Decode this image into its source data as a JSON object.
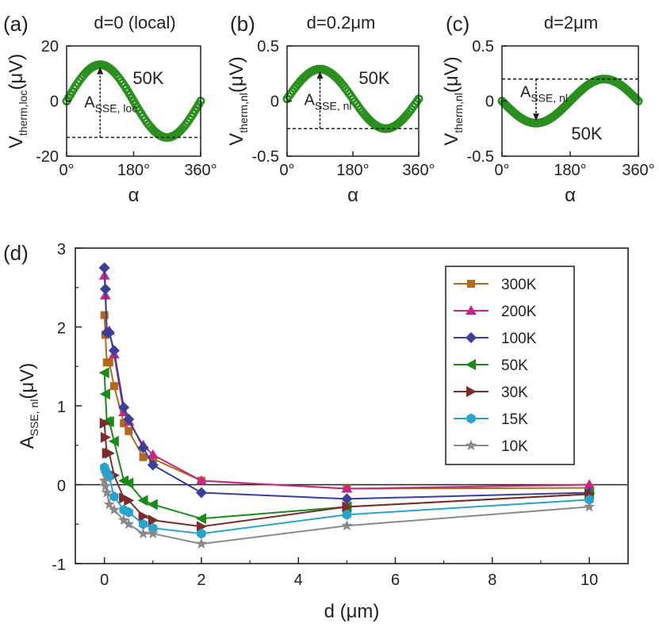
{
  "chart_data": [
    {
      "panel": "a",
      "type": "scatter",
      "title": "d=0 (local)",
      "xlabel": "α",
      "ylabel_main": "V",
      "ylabel_sub": "therm,loc",
      "ylabel_unit": "(μV)",
      "xlim": [
        0,
        360
      ],
      "ylim": [
        -20,
        20
      ],
      "xticks": [
        0,
        180,
        360
      ],
      "xtick_labels": [
        "0°",
        "180°",
        "360°"
      ],
      "yticks": [
        20,
        0,
        -20
      ],
      "ytick_labels": [
        "20",
        "0",
        "-20"
      ],
      "temperature": "50K",
      "annotation_main": "A",
      "annotation_sub": "SSE, loc",
      "amplitude": 13.2,
      "offset": 0,
      "phase_deg": 0,
      "ref_line": -13.2,
      "color": "#2a8f1f"
    },
    {
      "panel": "b",
      "type": "scatter",
      "title": "d=0.2μm",
      "xlabel": "α",
      "ylabel_main": "V",
      "ylabel_sub": "therm,nl",
      "ylabel_unit": "(μV)",
      "xlim": [
        0,
        360
      ],
      "ylim": [
        -0.5,
        0.5
      ],
      "xticks": [
        0,
        180,
        360
      ],
      "xtick_labels": [
        "0°",
        "180°",
        "360°"
      ],
      "yticks": [
        0.5,
        0,
        -0.5
      ],
      "ytick_labels": [
        "0.5",
        "0",
        "-0.5"
      ],
      "temperature": "50K",
      "annotation_main": "A",
      "annotation_sub": "SSE, nl",
      "amplitude": 0.27,
      "offset": 0.02,
      "phase_deg": 0,
      "ref_line": -0.25,
      "color": "#2a8f1f"
    },
    {
      "panel": "c",
      "type": "scatter",
      "title": "d=2μm",
      "xlabel": "α",
      "ylabel_main": "V",
      "ylabel_sub": "therm,nl",
      "ylabel_unit": "(μV)",
      "xlim": [
        0,
        360
      ],
      "ylim": [
        -0.5,
        0.5
      ],
      "xticks": [
        0,
        180,
        360
      ],
      "xtick_labels": [
        "0°",
        "180°",
        "360°"
      ],
      "yticks": [
        0.5,
        0,
        -0.5
      ],
      "ytick_labels": [
        "0.5",
        "0",
        "-0.5"
      ],
      "temperature": "50K",
      "annotation_main": "A",
      "annotation_sub": "SSE, nl",
      "amplitude": 0.2,
      "offset": 0,
      "phase_deg": 180,
      "ref_line": 0.2,
      "color": "#2a8f1f"
    },
    {
      "panel": "d",
      "type": "line",
      "xlabel_main": "d",
      "xlabel_unit": "(μm)",
      "ylabel_main": "A",
      "ylabel_sub": "SSE, nl",
      "ylabel_unit": "(μV)",
      "xlim": [
        -0.6,
        10.8
      ],
      "ylim": [
        -1,
        3
      ],
      "xticks": [
        0,
        2,
        4,
        6,
        8,
        10
      ],
      "xtick_labels": [
        "0",
        "2",
        "4",
        "6",
        "8",
        "10"
      ],
      "yticks": [
        3,
        2,
        1,
        0,
        -1
      ],
      "ytick_labels": [
        "3",
        "2",
        "1",
        "0",
        "-1"
      ],
      "legend_position": "top-right",
      "zero_line": true,
      "series": [
        {
          "name": "300K",
          "color": "#b06a1e",
          "marker": "square",
          "x": [
            0,
            0.02,
            0.05,
            0.1,
            0.2,
            0.4,
            0.5,
            0.8,
            1,
            2,
            5,
            10
          ],
          "y": [
            2.15,
            1.9,
            1.55,
            1.55,
            1.25,
            0.78,
            0.68,
            0.35,
            0.33,
            0.05,
            -0.05,
            -0.04
          ]
        },
        {
          "name": "200K",
          "color": "#c22a84",
          "marker": "triangle",
          "x": [
            0,
            0.02,
            0.05,
            0.1,
            0.2,
            0.4,
            0.5,
            0.8,
            1,
            2,
            5,
            10
          ],
          "y": [
            2.65,
            2.4,
            1.95,
            1.95,
            1.65,
            0.92,
            0.8,
            0.5,
            0.38,
            0.05,
            -0.05,
            0.0
          ]
        },
        {
          "name": "100K",
          "color": "#3b3f98",
          "marker": "diamond",
          "x": [
            0,
            0.02,
            0.05,
            0.1,
            0.2,
            0.4,
            0.5,
            0.8,
            1,
            2,
            5,
            10
          ],
          "y": [
            2.75,
            2.48,
            1.93,
            1.93,
            1.7,
            0.98,
            0.83,
            0.47,
            0.25,
            -0.1,
            -0.18,
            -0.1
          ]
        },
        {
          "name": "50K",
          "color": "#1b8a1b",
          "marker": "tri-left",
          "x": [
            0,
            0.02,
            0.05,
            0.1,
            0.2,
            0.4,
            0.5,
            0.8,
            1,
            2,
            5,
            10
          ],
          "y": [
            1.42,
            1.15,
            0.8,
            0.8,
            0.55,
            0.05,
            0.02,
            -0.2,
            -0.25,
            -0.43,
            -0.28,
            -0.12
          ]
        },
        {
          "name": "30K",
          "color": "#7b2c2c",
          "marker": "tri-right",
          "x": [
            0,
            0.02,
            0.05,
            0.1,
            0.2,
            0.4,
            0.5,
            0.8,
            1,
            2,
            5,
            10
          ],
          "y": [
            0.78,
            0.6,
            0.4,
            0.4,
            0.12,
            -0.17,
            -0.2,
            -0.4,
            -0.45,
            -0.53,
            -0.28,
            -0.12
          ]
        },
        {
          "name": "15K",
          "color": "#2aa3cc",
          "marker": "hexagon",
          "x": [
            0,
            0.02,
            0.05,
            0.1,
            0.2,
            0.4,
            0.5,
            0.8,
            1,
            2,
            5,
            10
          ],
          "y": [
            0.22,
            0.18,
            0.14,
            0.1,
            -0.15,
            -0.32,
            -0.35,
            -0.5,
            -0.55,
            -0.62,
            -0.38,
            -0.19
          ]
        },
        {
          "name": "10K",
          "color": "#8a8a8a",
          "marker": "star",
          "x": [
            0,
            0.02,
            0.05,
            0.1,
            0.2,
            0.4,
            0.5,
            0.8,
            1,
            2,
            5,
            10
          ],
          "y": [
            0.05,
            -0.02,
            -0.1,
            -0.25,
            -0.32,
            -0.45,
            -0.5,
            -0.62,
            -0.62,
            -0.75,
            -0.52,
            -0.28
          ]
        }
      ]
    }
  ]
}
